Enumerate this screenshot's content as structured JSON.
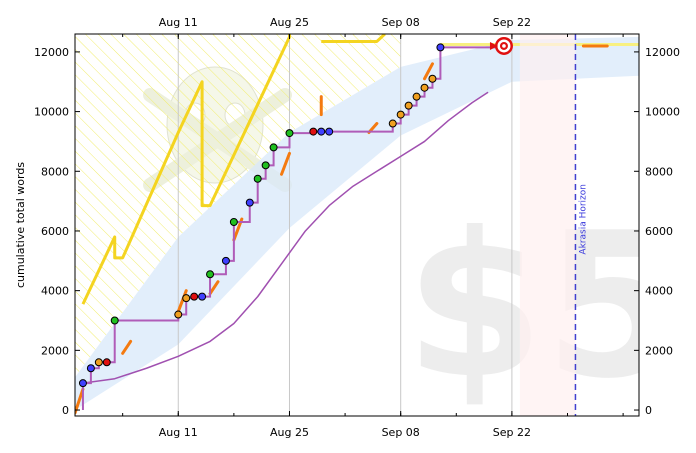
{
  "chart_data": {
    "type": "line",
    "ylabel": "cumulative total words",
    "ylim": [
      -200,
      12600
    ],
    "xlim": [
      "2024-07-29",
      "2024-10-08"
    ],
    "x_ticks": [
      {
        "date": "2024-08-11",
        "label": "Aug 11"
      },
      {
        "date": "2024-08-25",
        "label": "Aug 25"
      },
      {
        "date": "2024-09-08",
        "label": "Sep 08"
      },
      {
        "date": "2024-09-22",
        "label": "Sep 22"
      }
    ],
    "y_ticks": [
      0,
      2000,
      4000,
      6000,
      8000,
      10000,
      12000
    ],
    "grid_x": true,
    "watermark": "$5",
    "horizon": {
      "date": "2024-09-30",
      "label": "Akrasia Horizon"
    },
    "goal": {
      "date": "2024-09-21",
      "value": 12200
    },
    "colors": {
      "datapoint_line": "#b05cb8",
      "moving_average": "#a050b0",
      "bright_line": "#f4d420",
      "yellow_brick_road": "#d8e8fa",
      "orange_guideline": "#f47a10",
      "horizon_line": "#4040d0",
      "ok_dot": "#20c020",
      "warn_dot": "#4040ff",
      "danger_dot": "#f0a020",
      "emergency_dot": "#e01010"
    },
    "series": [
      {
        "kind": "datapoints",
        "points": [
          {
            "x": "2024-07-30",
            "y": 900,
            "c": "warn"
          },
          {
            "x": "2024-07-31",
            "y": 1400,
            "c": "warn"
          },
          {
            "x": "2024-08-01",
            "y": 1600,
            "c": "danger"
          },
          {
            "x": "2024-08-02",
            "y": 1600,
            "c": "emergency"
          },
          {
            "x": "2024-08-03",
            "y": 3000,
            "c": "ok"
          },
          {
            "x": "2024-08-11",
            "y": 3200,
            "c": "danger"
          },
          {
            "x": "2024-08-12",
            "y": 3750,
            "c": "danger"
          },
          {
            "x": "2024-08-13",
            "y": 3800,
            "c": "emergency"
          },
          {
            "x": "2024-08-14",
            "y": 3800,
            "c": "warn"
          },
          {
            "x": "2024-08-15",
            "y": 4550,
            "c": "ok"
          },
          {
            "x": "2024-08-17",
            "y": 5000,
            "c": "warn"
          },
          {
            "x": "2024-08-18",
            "y": 6300,
            "c": "ok"
          },
          {
            "x": "2024-08-20",
            "y": 6950,
            "c": "warn"
          },
          {
            "x": "2024-08-21",
            "y": 7750,
            "c": "ok"
          },
          {
            "x": "2024-08-22",
            "y": 8200,
            "c": "ok"
          },
          {
            "x": "2024-08-23",
            "y": 8800,
            "c": "ok"
          },
          {
            "x": "2024-08-25",
            "y": 9280,
            "c": "ok"
          },
          {
            "x": "2024-08-28",
            "y": 9330,
            "c": "emergency"
          },
          {
            "x": "2024-08-29",
            "y": 9330,
            "c": "warn"
          },
          {
            "x": "2024-08-30",
            "y": 9330,
            "c": "warn"
          },
          {
            "x": "2024-09-07",
            "y": 9600,
            "c": "danger"
          },
          {
            "x": "2024-09-08",
            "y": 9900,
            "c": "danger"
          },
          {
            "x": "2024-09-09",
            "y": 10200,
            "c": "danger"
          },
          {
            "x": "2024-09-10",
            "y": 10500,
            "c": "danger"
          },
          {
            "x": "2024-09-11",
            "y": 10800,
            "c": "danger"
          },
          {
            "x": "2024-09-12",
            "y": 11100,
            "c": "danger"
          },
          {
            "x": "2024-09-13",
            "y": 12150,
            "c": "warn"
          }
        ]
      },
      {
        "kind": "moving_average",
        "points": [
          {
            "x": "2024-07-30",
            "y": 900
          },
          {
            "x": "2024-08-03",
            "y": 1050
          },
          {
            "x": "2024-08-07",
            "y": 1400
          },
          {
            "x": "2024-08-11",
            "y": 1800
          },
          {
            "x": "2024-08-15",
            "y": 2300
          },
          {
            "x": "2024-08-18",
            "y": 2900
          },
          {
            "x": "2024-08-21",
            "y": 3800
          },
          {
            "x": "2024-08-24",
            "y": 4900
          },
          {
            "x": "2024-08-27",
            "y": 6000
          },
          {
            "x": "2024-08-30",
            "y": 6850
          },
          {
            "x": "2024-09-02",
            "y": 7500
          },
          {
            "x": "2024-09-05",
            "y": 8000
          },
          {
            "x": "2024-09-08",
            "y": 8500
          },
          {
            "x": "2024-09-11",
            "y": 9000
          },
          {
            "x": "2024-09-14",
            "y": 9700
          },
          {
            "x": "2024-09-17",
            "y": 10300
          },
          {
            "x": "2024-09-19",
            "y": 10650
          }
        ]
      },
      {
        "kind": "road_band",
        "points": [
          {
            "x": "2024-07-29",
            "lo": 0,
            "hi": 1100
          },
          {
            "x": "2024-08-11",
            "lo": 2200,
            "hi": 5800
          },
          {
            "x": "2024-08-25",
            "lo": 6100,
            "hi": 9300
          },
          {
            "x": "2024-09-08",
            "lo": 9200,
            "hi": 11500
          },
          {
            "x": "2024-09-22",
            "lo": 11000,
            "hi": 12400
          },
          {
            "x": "2024-10-08",
            "lo": 11200,
            "hi": 12500
          }
        ]
      },
      {
        "kind": "bright_line",
        "points": [
          {
            "x": "2024-07-30",
            "y": 3550
          },
          {
            "x": "2024-08-03",
            "y": 5800
          },
          {
            "x": "2024-08-03",
            "y": 5100
          },
          {
            "x": "2024-08-04",
            "y": 5100
          },
          {
            "x": "2024-08-11",
            "y": 9300
          },
          {
            "x": "2024-08-14",
            "y": 11000
          },
          {
            "x": "2024-08-14",
            "y": 6850
          },
          {
            "x": "2024-08-15",
            "y": 6850
          },
          {
            "x": "2024-08-25",
            "y": 12500
          },
          {
            "x": "2024-08-25",
            "y": 13000
          }
        ]
      },
      {
        "kind": "bright_line_upper",
        "points": [
          {
            "x": "2024-08-29",
            "y": 12350
          },
          {
            "x": "2024-09-05",
            "y": 12350
          },
          {
            "x": "2024-09-06",
            "y": 12600
          }
        ]
      },
      {
        "kind": "bright_line_tail",
        "points": [
          {
            "x": "2024-09-13",
            "y": 12250
          },
          {
            "x": "2024-10-08",
            "y": 12250
          }
        ]
      },
      {
        "kind": "orange_guideline",
        "segments": [
          [
            {
              "x": "2024-07-29",
              "y": -100
            },
            {
              "x": "2024-07-30",
              "y": 700
            }
          ],
          [
            {
              "x": "2024-08-04",
              "y": 1900
            },
            {
              "x": "2024-08-05",
              "y": 2300
            }
          ],
          [
            {
              "x": "2024-08-11",
              "y": 3300
            },
            {
              "x": "2024-08-12",
              "y": 4000
            }
          ],
          [
            {
              "x": "2024-08-15",
              "y": 3900
            },
            {
              "x": "2024-08-16",
              "y": 4300
            }
          ],
          [
            {
              "x": "2024-08-18",
              "y": 5700
            },
            {
              "x": "2024-08-19",
              "y": 6400
            }
          ],
          [
            {
              "x": "2024-08-24",
              "y": 7900
            },
            {
              "x": "2024-08-25",
              "y": 8600
            }
          ],
          [
            {
              "x": "2024-08-29",
              "y": 10500
            },
            {
              "x": "2024-08-29",
              "y": 9900
            }
          ],
          [
            {
              "x": "2024-09-04",
              "y": 9300
            },
            {
              "x": "2024-09-05",
              "y": 9600
            }
          ],
          [
            {
              "x": "2024-09-11",
              "y": 11100
            },
            {
              "x": "2024-09-12",
              "y": 11600
            }
          ],
          [
            {
              "x": "2024-10-01",
              "y": 12200
            },
            {
              "x": "2024-10-04",
              "y": 12200
            }
          ]
        ]
      }
    ]
  }
}
